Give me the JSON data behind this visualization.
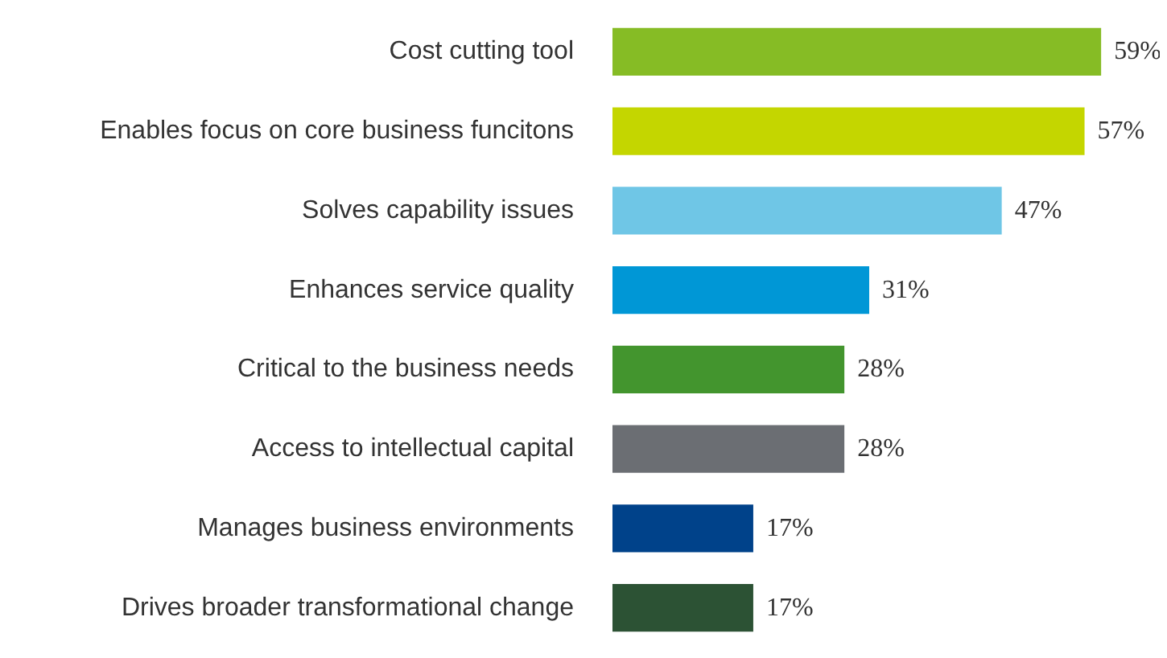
{
  "chart_data": {
    "type": "bar",
    "orientation": "horizontal",
    "grid": false,
    "categories": [
      "Cost cutting tool",
      "Enables focus on core business funcitons",
      "Solves capability issues",
      "Enhances service quality",
      "Critical to the business needs",
      "Access to intellectual capital",
      "Manages business environments",
      "Drives broader transformational change"
    ],
    "values": [
      59,
      57,
      47,
      31,
      28,
      28,
      17,
      17
    ],
    "value_labels": [
      "59%",
      "57%",
      "47%",
      "31%",
      "28%",
      "28%",
      "17%",
      "17%"
    ],
    "colors": [
      "#86bc25",
      "#c4d600",
      "#6fc6e6",
      "#0097d6",
      "#43952e",
      "#6b6e73",
      "#00428a",
      "#2c5234"
    ]
  }
}
